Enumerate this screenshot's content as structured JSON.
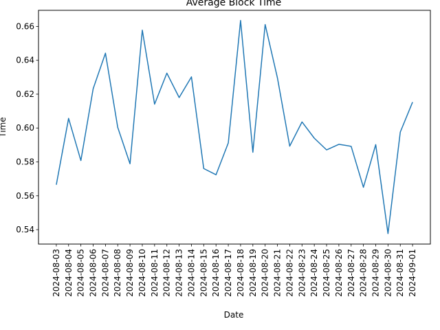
{
  "chart_data": {
    "type": "line",
    "title": "Average Block Time",
    "xlabel": "Date",
    "ylabel": "Time",
    "ylim": [
      0.5315,
      0.6695
    ],
    "yticks": [
      0.54,
      0.56,
      0.58,
      0.6,
      0.62,
      0.64,
      0.66
    ],
    "ytick_labels": [
      "0.54",
      "0.56",
      "0.58",
      "0.60",
      "0.62",
      "0.64",
      "0.66"
    ],
    "grid": false,
    "line_color": "#1f77b4",
    "x": [
      "2024-08-03",
      "2024-08-04",
      "2024-08-05",
      "2024-08-06",
      "2024-08-07",
      "2024-08-08",
      "2024-08-09",
      "2024-08-10",
      "2024-08-11",
      "2024-08-12",
      "2024-08-13",
      "2024-08-14",
      "2024-08-15",
      "2024-08-16",
      "2024-08-17",
      "2024-08-18",
      "2024-08-19",
      "2024-08-20",
      "2024-08-21",
      "2024-08-22",
      "2024-08-23",
      "2024-08-24",
      "2024-08-25",
      "2024-08-26",
      "2024-08-27",
      "2024-08-28",
      "2024-08-29",
      "2024-08-30",
      "2024-08-31",
      "2024-09-01"
    ],
    "series": [
      {
        "values": [
          0.5665,
          0.6057,
          0.5808,
          0.6232,
          0.6442,
          0.6004,
          0.5789,
          0.6578,
          0.6141,
          0.6324,
          0.618,
          0.6302,
          0.5761,
          0.5724,
          0.5912,
          0.6635,
          0.5857,
          0.6611,
          0.6296,
          0.5893,
          0.6036,
          0.594,
          0.5871,
          0.5904,
          0.5892,
          0.565,
          0.5902,
          0.5377,
          0.5976,
          0.6153
        ]
      }
    ]
  }
}
